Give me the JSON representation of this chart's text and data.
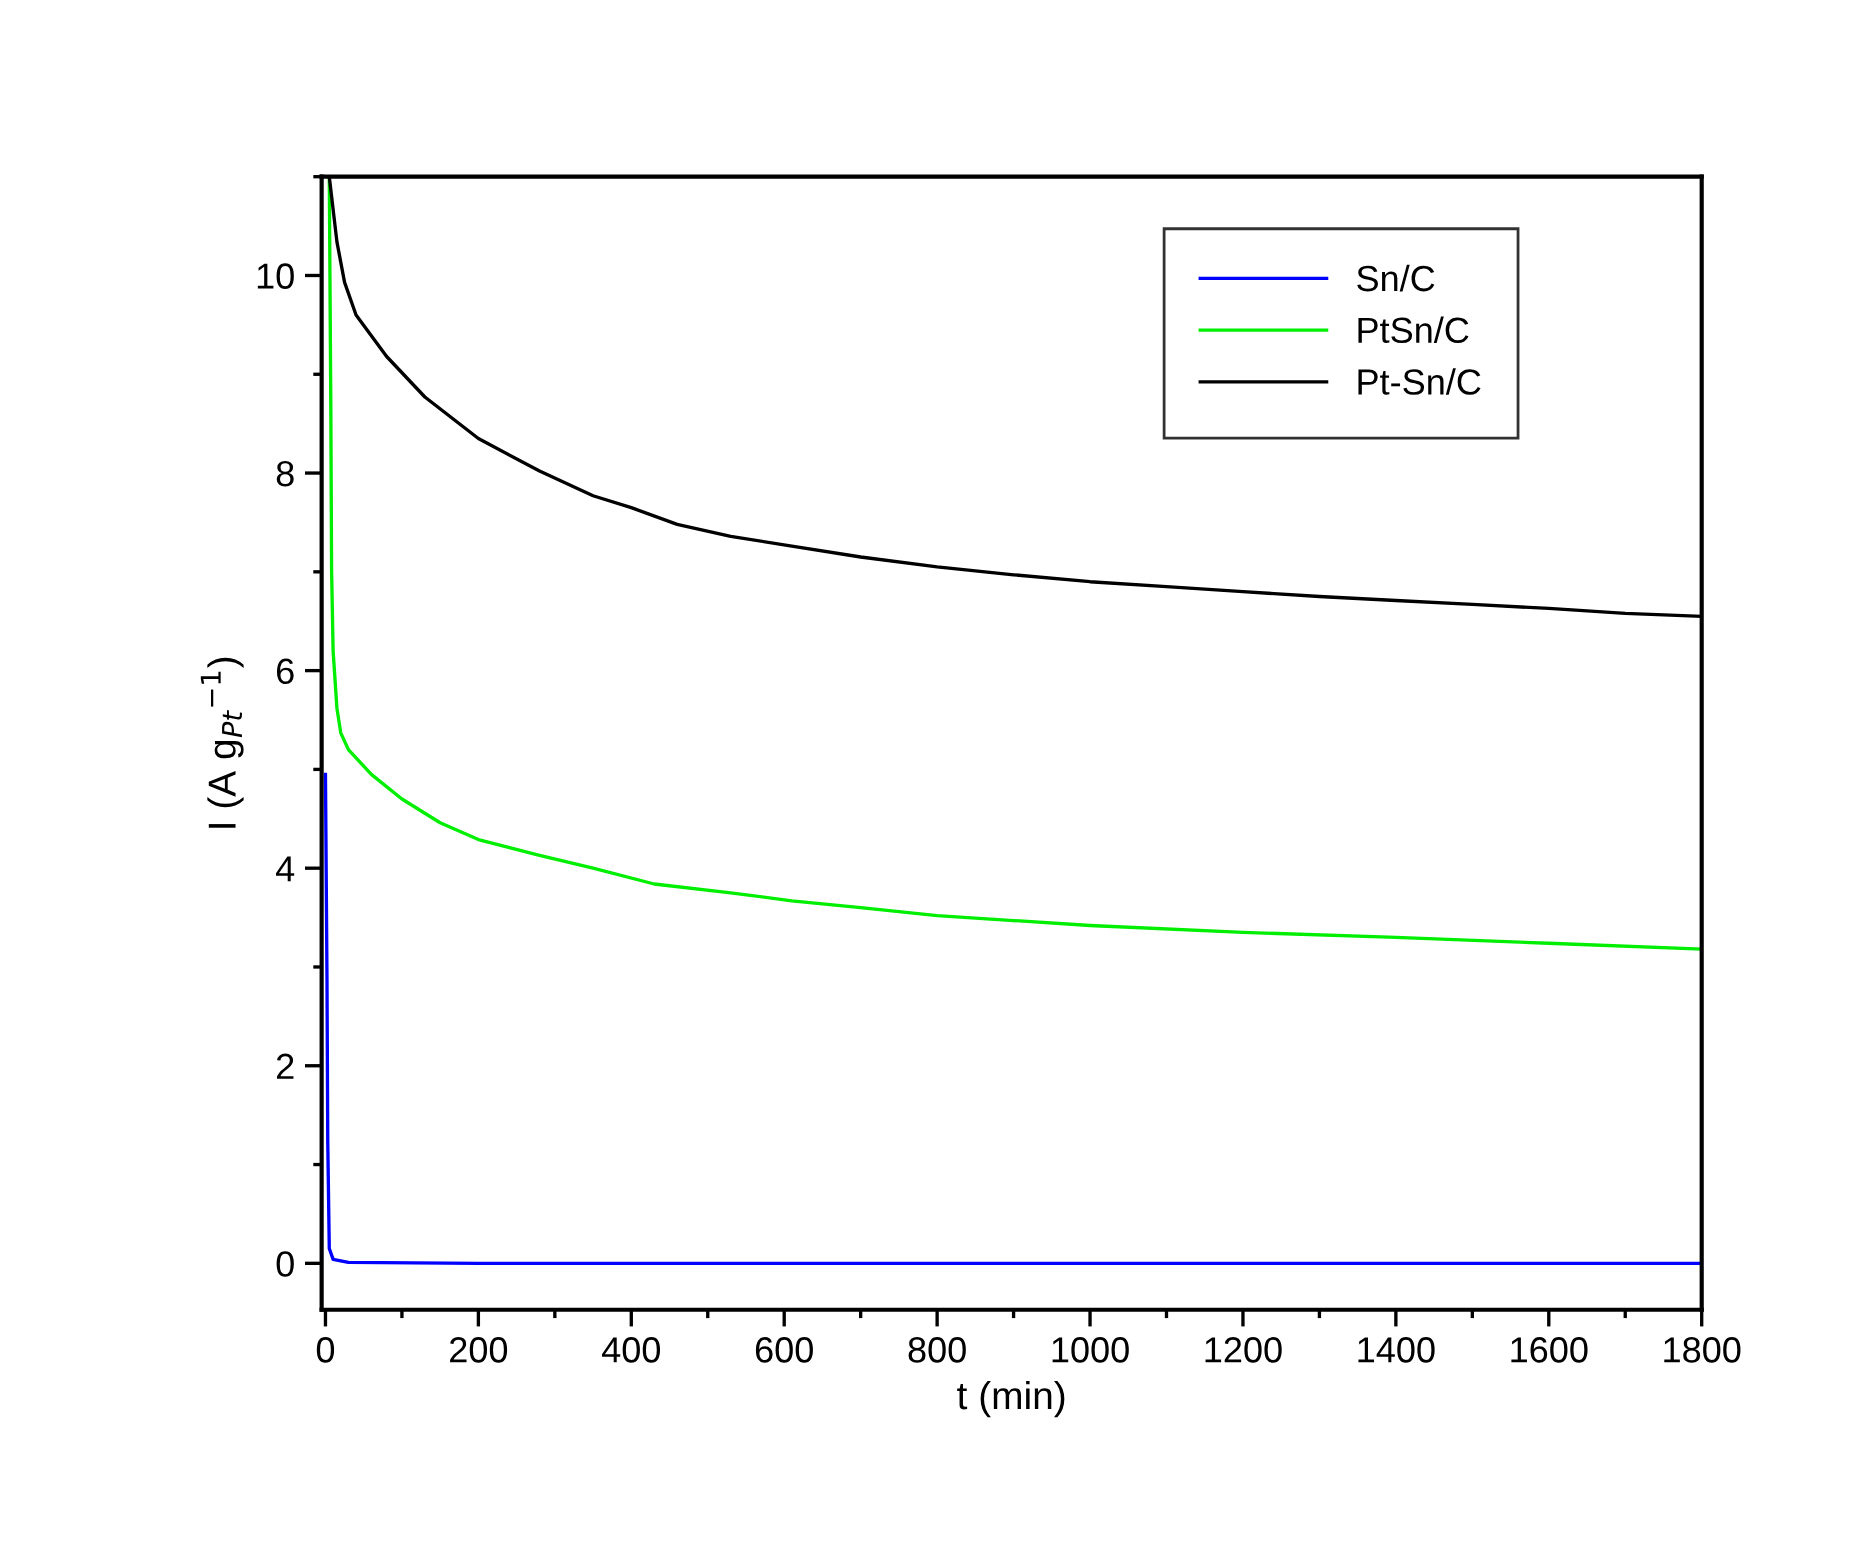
{
  "chart_data": {
    "type": "line",
    "xlabel": "t (min)",
    "ylabel": "I (A g$_{Pt}$$^{−1}$)",
    "xlim": [
      -5,
      1800
    ],
    "ylim": [
      -0.47,
      11
    ],
    "xticks": [
      0,
      200,
      400,
      600,
      800,
      1000,
      1200,
      1400,
      1600,
      1800
    ],
    "yticks": [
      0,
      2,
      4,
      6,
      8,
      10
    ],
    "grid": false,
    "legend": "top right",
    "marker": "none",
    "line_style": "solid",
    "series": [
      {
        "name": "Sn/C",
        "color": "#0000ff",
        "x": [
          0,
          2,
          3,
          5,
          10,
          30,
          200,
          600,
          1000,
          1400,
          1800
        ],
        "values": [
          4.95,
          2.88,
          1.23,
          0.15,
          0.04,
          0.01,
          0.0,
          0.0,
          0.0,
          0.0,
          0.0
        ]
      },
      {
        "name": "PtSn/C",
        "color": "#00ee00",
        "x": [
          5,
          7,
          8,
          10,
          15,
          20,
          30,
          60,
          100,
          150,
          200,
          280,
          350,
          430,
          530,
          610,
          700,
          800,
          900,
          1000,
          1200,
          1400,
          1600,
          1800
        ],
        "values": [
          11,
          8.68,
          7.03,
          6.2,
          5.62,
          5.37,
          5.2,
          4.95,
          4.7,
          4.46,
          4.29,
          4.13,
          4.0,
          3.84,
          3.75,
          3.67,
          3.6,
          3.52,
          3.47,
          3.42,
          3.35,
          3.3,
          3.24,
          3.18
        ]
      },
      {
        "name": "Pt-Sn/C",
        "color": "#000000",
        "x": [
          5,
          15,
          25,
          40,
          80,
          130,
          200,
          280,
          350,
          400,
          460,
          530,
          610,
          700,
          800,
          900,
          1000,
          1100,
          1200,
          1300,
          1400,
          1500,
          1600,
          1700,
          1800
        ],
        "values": [
          11,
          10.34,
          9.93,
          9.6,
          9.18,
          8.77,
          8.35,
          8.02,
          7.77,
          7.65,
          7.48,
          7.36,
          7.26,
          7.15,
          7.05,
          6.97,
          6.9,
          6.85,
          6.8,
          6.75,
          6.71,
          6.67,
          6.63,
          6.58,
          6.55
        ]
      }
    ]
  }
}
